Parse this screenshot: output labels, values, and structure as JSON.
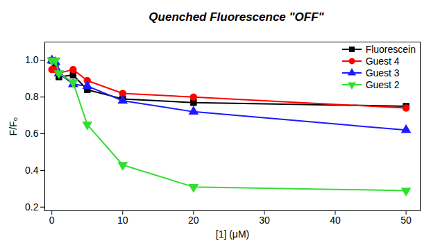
{
  "chart_data": {
    "type": "line",
    "annotation": "Quenched Fluorescence \"OFF\"",
    "x_label": "[1] (μM)",
    "y_label": "F/F₀",
    "x": [
      0,
      0.5,
      1,
      3,
      5,
      10,
      20,
      50
    ],
    "series": [
      {
        "name": "Fluorescein",
        "color": "#000000",
        "marker": "square",
        "values": [
          1.0,
          0.97,
          0.91,
          0.92,
          0.84,
          0.79,
          0.77,
          0.75
        ]
      },
      {
        "name": "Guest 4",
        "color": "#ff0000",
        "marker": "circle",
        "values": [
          0.95,
          0.95,
          0.93,
          0.95,
          0.89,
          0.82,
          0.8,
          0.74
        ]
      },
      {
        "name": "Guest 3",
        "color": "#1a1aff",
        "marker": "triangle",
        "values": [
          1.0,
          0.99,
          0.93,
          0.87,
          0.86,
          0.78,
          0.72,
          0.62
        ]
      },
      {
        "name": "Guest 2",
        "color": "#33dd33",
        "marker": "triangle-down",
        "values": [
          1.0,
          1.0,
          0.93,
          0.88,
          0.65,
          0.43,
          0.31,
          0.29
        ]
      }
    ],
    "xlim": [
      -1,
      52
    ],
    "xticks": [
      0,
      10,
      20,
      30,
      40,
      50
    ],
    "ylim": [
      0.18,
      1.1
    ],
    "yticks": [
      0.2,
      0.4,
      0.6,
      0.8,
      {
        "value": 1,
        "label": "1.0"
      }
    ],
    "legend": "top-right",
    "grid": false
  }
}
